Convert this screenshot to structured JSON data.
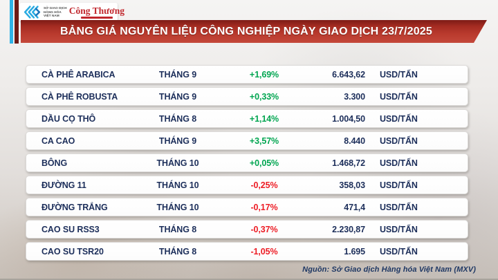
{
  "banner": {
    "title": "BẢNG GIÁ NGUYÊN LIỆU CÔNG NGHIỆP NGÀY GIAO DỊCH 23/7/2025"
  },
  "logos": {
    "mxv": {
      "lines": [
        "SỞ GIAO DỊCH",
        "HÀNG HÓA",
        "VIỆT NAM"
      ]
    },
    "congthuong": "Công Thương"
  },
  "chart_data": {
    "type": "table",
    "title": "BẢNG GIÁ NGUYÊN LIỆU CÔNG NGHIỆP NGÀY GIAO DỊCH 23/7/2025",
    "columns": [
      "name",
      "month",
      "change_percent",
      "price",
      "unit"
    ],
    "rows": [
      {
        "name": "CÀ PHÊ ARABICA",
        "month": "THÁNG 9",
        "change": "+1,69%",
        "direction": "up",
        "price": "6.643,62",
        "unit": "USD/TẤN"
      },
      {
        "name": "CÀ PHÊ ROBUSTA",
        "month": "THÁNG 9",
        "change": "+0,33%",
        "direction": "up",
        "price": "3.300",
        "unit": "USD/TẤN"
      },
      {
        "name": "DẦU CỌ THÔ",
        "month": "THÁNG 8",
        "change": "+1,14%",
        "direction": "up",
        "price": "1.004,50",
        "unit": "USD/TẤN"
      },
      {
        "name": "CA CAO",
        "month": "THÁNG 9",
        "change": "+3,57%",
        "direction": "up",
        "price": "8.440",
        "unit": "USD/TẤN"
      },
      {
        "name": "BÔNG",
        "month": "THÁNG 10",
        "change": "+0,05%",
        "direction": "up",
        "price": "1.468,72",
        "unit": "USD/TẤN"
      },
      {
        "name": "ĐƯỜNG 11",
        "month": "THÁNG 10",
        "change": "-0,25%",
        "direction": "down",
        "price": "358,03",
        "unit": "USD/TẤN"
      },
      {
        "name": "ĐƯỜNG TRẮNG",
        "month": "THÁNG 10",
        "change": "-0,17%",
        "direction": "down",
        "price": "471,4",
        "unit": "USD/TẤN"
      },
      {
        "name": "CAO SU RSS3",
        "month": "THÁNG 8",
        "change": "-0,37%",
        "direction": "down",
        "price": "2.230,87",
        "unit": "USD/TẤN"
      },
      {
        "name": "CAO SU TSR20",
        "month": "THÁNG 8",
        "change": "-1,05%",
        "direction": "down",
        "price": "1.695",
        "unit": "USD/TẤN"
      }
    ]
  },
  "footer": {
    "source": "Nguồn: Sở Giao dịch Hàng hóa Việt Nam (MXV)"
  },
  "colors": {
    "positive": "#00a550",
    "negative": "#ed1c24",
    "text_navy": "#1c2e5a",
    "banner_red": "#b93a2d",
    "mxv_blue": "#29abe2",
    "congthuong_red": "#c1272d"
  }
}
